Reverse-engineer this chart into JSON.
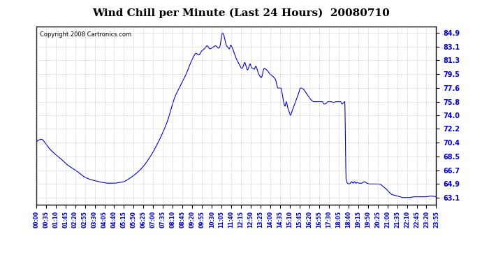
{
  "title": "Wind Chill per Minute (Last 24 Hours)  20080710",
  "copyright_text": "Copyright 2008 Cartronics.com",
  "line_color": "#0000cc",
  "background_color": "#ffffff",
  "grid_color": "#aaaaaa",
  "yticks": [
    63.1,
    64.9,
    66.7,
    68.5,
    70.4,
    72.2,
    74.0,
    75.8,
    77.6,
    79.5,
    81.3,
    83.1,
    84.9
  ],
  "ymin": 62.2,
  "ymax": 85.8,
  "xtick_labels": [
    "00:00",
    "00:35",
    "01:10",
    "01:45",
    "02:20",
    "02:55",
    "03:30",
    "04:05",
    "04:40",
    "05:15",
    "05:50",
    "06:25",
    "07:00",
    "07:35",
    "08:10",
    "08:45",
    "09:20",
    "09:55",
    "10:30",
    "11:05",
    "11:40",
    "12:15",
    "12:50",
    "13:25",
    "14:00",
    "14:35",
    "15:10",
    "15:45",
    "16:20",
    "16:55",
    "17:30",
    "18:05",
    "18:40",
    "19:15",
    "19:50",
    "20:25",
    "21:00",
    "21:35",
    "22:10",
    "22:45",
    "23:20",
    "23:55"
  ],
  "num_minutes": 1440,
  "key_points": [
    [
      0,
      70.4
    ],
    [
      20,
      70.8
    ],
    [
      35,
      70.2
    ],
    [
      50,
      69.5
    ],
    [
      70,
      68.8
    ],
    [
      90,
      68.2
    ],
    [
      110,
      67.5
    ],
    [
      130,
      67.0
    ],
    [
      150,
      66.5
    ],
    [
      175,
      65.8
    ],
    [
      195,
      65.5
    ],
    [
      215,
      65.3
    ],
    [
      240,
      65.1
    ],
    [
      260,
      65.0
    ],
    [
      280,
      65.0
    ],
    [
      300,
      65.1
    ],
    [
      315,
      65.2
    ],
    [
      330,
      65.5
    ],
    [
      350,
      66.0
    ],
    [
      380,
      67.0
    ],
    [
      410,
      68.5
    ],
    [
      440,
      70.5
    ],
    [
      470,
      73.0
    ],
    [
      500,
      76.5
    ],
    [
      520,
      78.0
    ],
    [
      540,
      79.5
    ],
    [
      560,
      81.3
    ],
    [
      575,
      82.2
    ],
    [
      585,
      82.0
    ],
    [
      595,
      82.5
    ],
    [
      605,
      82.8
    ],
    [
      615,
      83.2
    ],
    [
      625,
      82.8
    ],
    [
      635,
      83.0
    ],
    [
      645,
      83.2
    ],
    [
      650,
      83.1
    ],
    [
      655,
      82.9
    ],
    [
      660,
      83.0
    ],
    [
      665,
      84.0
    ],
    [
      670,
      84.9
    ],
    [
      675,
      84.6
    ],
    [
      680,
      83.8
    ],
    [
      685,
      83.2
    ],
    [
      690,
      83.0
    ],
    [
      695,
      82.8
    ],
    [
      700,
      83.3
    ],
    [
      705,
      83.0
    ],
    [
      710,
      82.5
    ],
    [
      720,
      81.5
    ],
    [
      730,
      80.8
    ],
    [
      740,
      80.2
    ],
    [
      745,
      80.5
    ],
    [
      750,
      81.0
    ],
    [
      755,
      80.5
    ],
    [
      760,
      80.0
    ],
    [
      770,
      80.8
    ],
    [
      775,
      80.3
    ],
    [
      780,
      80.2
    ],
    [
      785,
      80.1
    ],
    [
      790,
      80.5
    ],
    [
      800,
      79.5
    ],
    [
      810,
      79.0
    ],
    [
      820,
      80.2
    ],
    [
      830,
      80.0
    ],
    [
      840,
      79.5
    ],
    [
      850,
      79.2
    ],
    [
      860,
      78.8
    ],
    [
      870,
      77.6
    ],
    [
      880,
      77.6
    ],
    [
      890,
      75.8
    ],
    [
      895,
      75.2
    ],
    [
      900,
      75.8
    ],
    [
      905,
      75.0
    ],
    [
      910,
      74.5
    ],
    [
      915,
      74.0
    ],
    [
      920,
      74.5
    ],
    [
      925,
      75.0
    ],
    [
      930,
      75.5
    ],
    [
      935,
      76.0
    ],
    [
      940,
      76.5
    ],
    [
      945,
      77.0
    ],
    [
      950,
      77.6
    ],
    [
      960,
      77.5
    ],
    [
      970,
      77.0
    ],
    [
      980,
      76.5
    ],
    [
      990,
      76.0
    ],
    [
      1000,
      75.8
    ],
    [
      1010,
      75.8
    ],
    [
      1020,
      75.8
    ],
    [
      1030,
      75.8
    ],
    [
      1035,
      75.5
    ],
    [
      1040,
      75.5
    ],
    [
      1050,
      75.8
    ],
    [
      1060,
      75.8
    ],
    [
      1070,
      75.7
    ],
    [
      1080,
      75.8
    ],
    [
      1090,
      75.8
    ],
    [
      1095,
      75.8
    ],
    [
      1100,
      75.5
    ],
    [
      1110,
      75.8
    ],
    [
      1115,
      65.5
    ],
    [
      1120,
      65.0
    ],
    [
      1125,
      64.9
    ],
    [
      1130,
      65.0
    ],
    [
      1135,
      65.2
    ],
    [
      1140,
      65.0
    ],
    [
      1145,
      65.2
    ],
    [
      1150,
      65.0
    ],
    [
      1155,
      65.1
    ],
    [
      1160,
      65.0
    ],
    [
      1170,
      65.0
    ],
    [
      1180,
      65.2
    ],
    [
      1190,
      65.0
    ],
    [
      1200,
      64.9
    ],
    [
      1210,
      64.9
    ],
    [
      1220,
      64.9
    ],
    [
      1230,
      64.9
    ],
    [
      1240,
      64.8
    ],
    [
      1250,
      64.5
    ],
    [
      1260,
      64.2
    ],
    [
      1270,
      63.8
    ],
    [
      1280,
      63.5
    ],
    [
      1290,
      63.4
    ],
    [
      1300,
      63.3
    ],
    [
      1310,
      63.2
    ],
    [
      1320,
      63.1
    ],
    [
      1340,
      63.1
    ],
    [
      1360,
      63.2
    ],
    [
      1380,
      63.2
    ],
    [
      1400,
      63.2
    ],
    [
      1420,
      63.3
    ],
    [
      1439,
      63.2
    ]
  ]
}
